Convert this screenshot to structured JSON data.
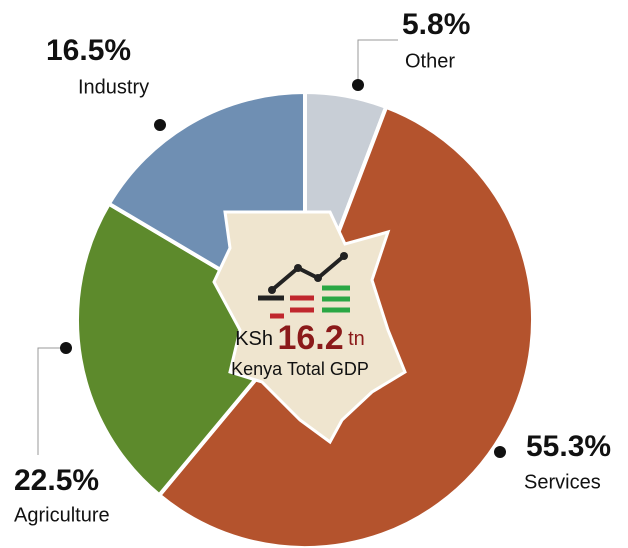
{
  "chart_data": {
    "type": "pie",
    "categories": [
      "Other",
      "Services",
      "Agriculture",
      "Industry"
    ],
    "values": [
      5.8,
      55.3,
      22.5,
      16.5
    ],
    "value_labels": [
      "5.8%",
      "55.3%",
      "22.5%",
      "16.5%"
    ],
    "colors": [
      "#c8ced6",
      "#b4532d",
      "#5d8a2c",
      "#6f8fb3"
    ],
    "center": {
      "prefix": "KSh",
      "amount": "16.2",
      "unit": "tn",
      "caption": "Kenya Total GDP"
    }
  }
}
